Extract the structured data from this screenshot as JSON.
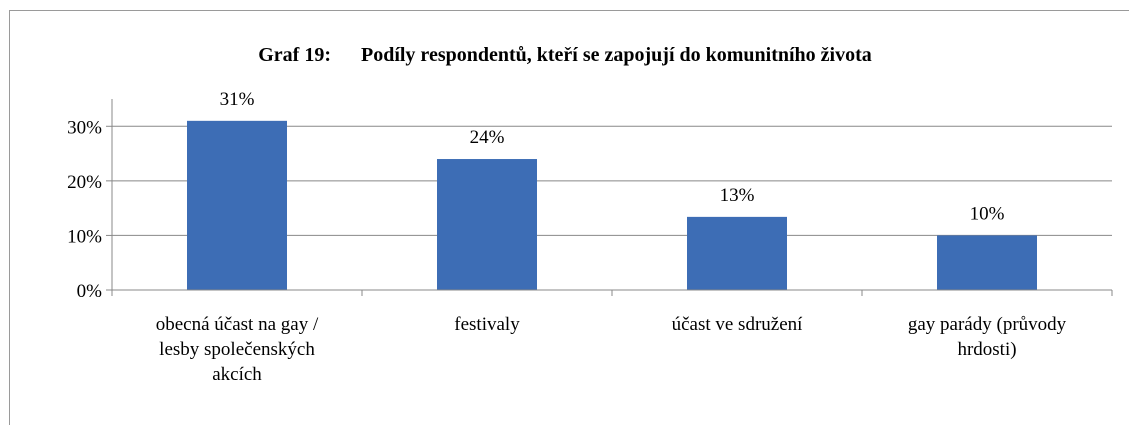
{
  "chart_data": {
    "type": "bar",
    "title": "Graf 19:      Podíly respondentů, kteří se zapojují do komunitního života",
    "categories": [
      "obecná účast na gay / lesby společenských akcích",
      "festivaly",
      "účast ve sdružení",
      "gay parády (průvody hrdosti)"
    ],
    "values": [
      31,
      24,
      13.4,
      10
    ],
    "value_labels": [
      "31%",
      "24%",
      "13%",
      "10%"
    ],
    "color": "#3d6db5",
    "ylim": [
      0,
      35
    ],
    "yticks": [
      {
        "value": 0,
        "label": "0%"
      },
      {
        "value": 10,
        "label": "10%"
      },
      {
        "value": 20,
        "label": "20%"
      },
      {
        "value": 30,
        "label": "30%"
      }
    ],
    "grid": true
  }
}
